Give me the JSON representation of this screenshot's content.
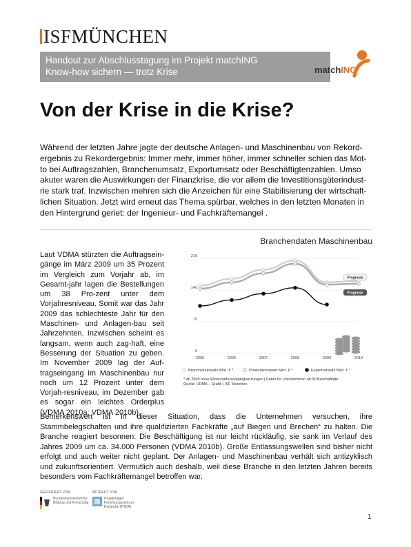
{
  "header": {
    "logo_isf": "ISF",
    "logo_city": "MÜNCHEN",
    "banner_line1": "Handout zur Abschlusstagung im Projekt matchING",
    "banner_line2": "Know-how sichern — trotz Krise",
    "matching_logo_prefix": "match",
    "matching_logo_suffix": "ING"
  },
  "title": "Von der Krise in die Krise?",
  "intro": "Während der letzten Jahre jagte der deutsche Anlagen- und Maschinenbau von Rekord-ergebnis zu Rekordergebnis: Immer mehr, immer höher, immer schneller schien das Mot-to bei Auftragszahlen, Branchenumsatz, Exportumsatz oder Beschäftigtenzahlen. Umso akuter waren die Auswirkungen der Finanzkrise, die vor allem die Investitionsgüterindust-rie stark traf. Inzwischen mehren sich die Anzeichen für eine Stabilisierung der wirtschaft-lichen Situation. Jetzt wird erneut das Thema spürbar, welches in den letzten Monaten in den Hintergrund geriet: der Ingenieur- und Fachkräftemangel .",
  "left_column": "Laut VDMA stürzten die Auftragsein-gänge im März 2009 um 35 Prozent im Vergleich zum Vorjahr ab, im Gesamt-jahr lagen die Bestellungen um 38 Pro-zent unter dem Vorjahresniveau. Somit war das Jahr 2009 das schlechteste Jahr für den Maschinen- und Anlagen-bau seit Jahrzehnten. Inzwischen scheint es langsam, wenn auch zag-haft, eine Besserung der Situation zu geben. Im November 2009 lag der Auf-tragseingang im Maschinenbau nur noch um 12 Prozent unter dem Vorjah-resniveau, im Dezember gab es sogar ein leichtes Orderplus (VDMA 2010a; VDMA 2010b).",
  "chart_heading": "Branchendaten Maschinenbau",
  "chart_data": {
    "type": "line",
    "title": "Branchendaten Maschinenbau",
    "x": [
      "2005",
      "2006",
      "2007",
      "2008",
      "2009",
      "2010"
    ],
    "ylim": [
      0,
      210
    ],
    "yticks": [
      "0",
      "70",
      "140",
      "210"
    ],
    "series": [
      {
        "name": "Branchenumsatz Mrd. € *",
        "color": "#cfcfcf",
        "marker": "diamond",
        "values": [
          150,
          165,
          185,
          205,
          157,
          160
        ]
      },
      {
        "name": "Produktionswert Mrd. € *",
        "color": "#a9a9a9",
        "marker": "circle",
        "values": [
          143,
          157,
          177,
          198,
          152,
          154
        ]
      },
      {
        "name": "Exportumsatz Mrd. € *",
        "color": "#111111",
        "marker": "circle",
        "values": [
          105,
          118,
          132,
          145,
          108,
          null
        ]
      }
    ],
    "annotations": [
      "Prognose",
      "Prognose"
    ],
    "grid": true,
    "legend": "bottom"
  },
  "footnote_line1": "* ab 2008 neue Wirtschaftszweigabgrenzungen | Daten für Unternehmen ab 50 Beschäftigte",
  "footnote_line2": "Quelle: VDMA – Grafik | ISF München",
  "body2": "Bemerkenswert ist in dieser Situation, dass die Unternehmen versuchen, ihre Stammbelegschaften und ihre qualifizierten Fachkräfte „auf Biegen und Brechen“ zu halten. Die Branche reagiert besonnen: Die Beschäftigung ist nur leicht rückläufig, sie sank im Verlauf des Jahres 2009 um ca. 34.000 Personen (VDMA 2010b). Große Entlassungswellen sind bisher nicht erfolgt und auch weiter nicht geplant. Der Anlagen- und Maschinenbau verhält sich antizyklisch und zukunftsorientiert. Vermutlich auch deshalb, weil diese Branche in den letzten Jahren bereits besonders vom Fachkräftemangel betroffen war.",
  "footer": {
    "funder_label": "GEFÖRDERT VOM",
    "funder_name": "Bundesministerium für Bildung und Forschung",
    "carrier_label": "BETREUT VOM",
    "carrier_name": "Projektträger Forschungszentrum Karlsruhe (PTKA)",
    "page_number": "1"
  }
}
